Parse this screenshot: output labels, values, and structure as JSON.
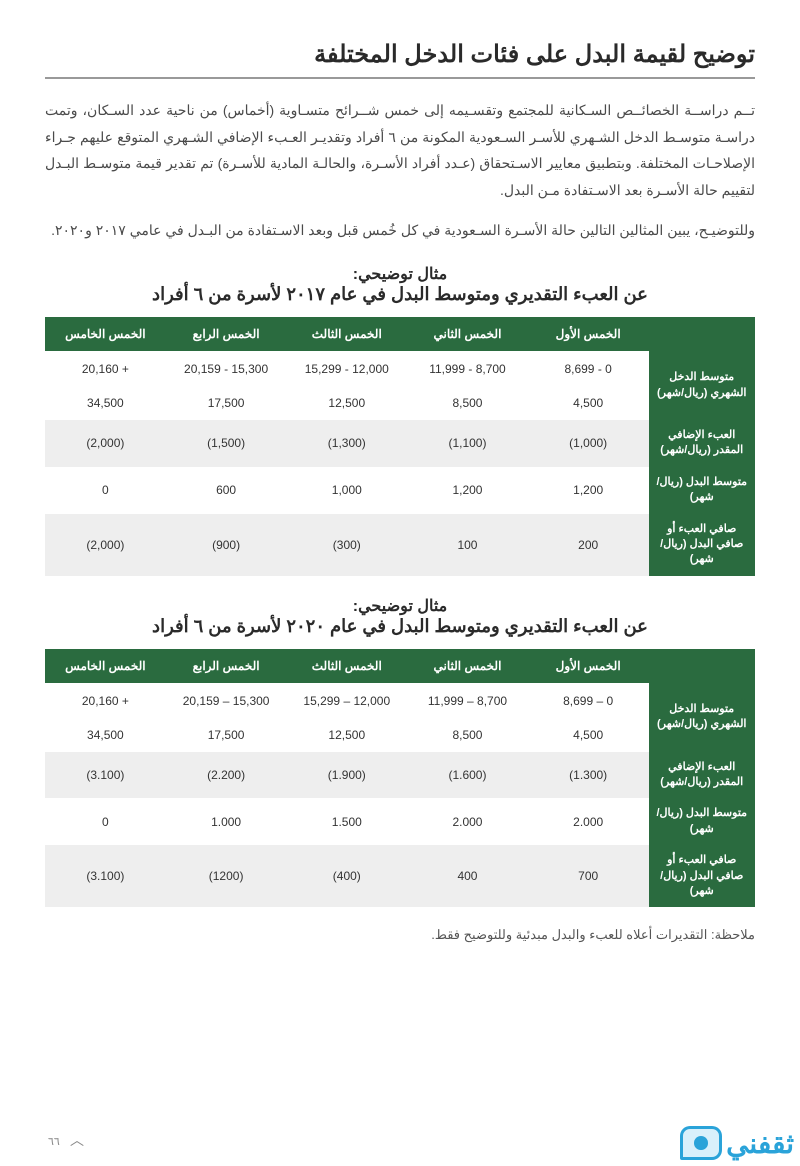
{
  "colors": {
    "header_bg": "#2a6b3f",
    "header_text": "#ffffff",
    "row_alt_bg": "#eeeeee",
    "text": "#3a3a3a",
    "watermark": "#2aa3d9"
  },
  "title": "توضيح لقيمة البدل على فئات الدخل المختلفة",
  "paragraph1": "تــم دراســة الخصائــص السـكانية للمجتمع وتقسـيمه إلى خمس شــرائح متسـاوية (أخماس) من ناحية عدد السـكان، وتمت دراسـة متوسـط الدخل الشـهري للأسـر السـعودية المكونة من ٦ أفراد وتقديـر العـبء الإضافي الشـهري المتوقع عليهم جـراء الإصلاحـات المختلفة. وبتطبيق معايير الاسـتحقاق (عـدد أفراد الأسـرة، والحالـة المادية للأسـرة) تم تقدير قيمة متوسـط البـدل لتقييم حالة الأسـرة بعد الاسـتفادة مـن البدل.",
  "paragraph2": "وللتوضيـح، يبين المثالين التالين حالة الأسـرة السـعودية في كل خُمس قبل وبعد الاسـتفادة من البـدل في عامي ٢٠١٧ و٢٠٢٠.",
  "example1": {
    "label": "مثال توضيحي:",
    "title": "عن العبء التقديري ومتوسط البدل في عام ٢٠١٧ لأسرة من ٦ أفراد",
    "columns": [
      "الخمس الأول",
      "الخمس الثاني",
      "الخمس الثالث",
      "الخمس الرابع",
      "الخمس الخامس"
    ],
    "rows": [
      {
        "head": "متوسط الدخل الشهري (ريال/شهر)",
        "cells": [
          "0 - 8,699",
          "8,700 - 11,999",
          "12,000 - 15,299",
          "15,300 - 20,159",
          "+ 20,160"
        ]
      },
      {
        "head": "",
        "cells": [
          "4,500",
          "8,500",
          "12,500",
          "17,500",
          "34,500"
        ]
      },
      {
        "head": "العبء الإضافي المقدر (ريال/شهر)",
        "cells": [
          "(1,000)",
          "(1,100)",
          "(1,300)",
          "(1,500)",
          "(2,000)"
        ]
      },
      {
        "head": "متوسط البدل (ريال/شهر)",
        "cells": [
          "1,200",
          "1,200",
          "1,000",
          "600",
          "0"
        ]
      },
      {
        "head": "صافي العبء أو صافي البدل (ريال/شهر)",
        "cells": [
          "200",
          "100",
          "(300)",
          "(900)",
          "(2,000)"
        ]
      }
    ]
  },
  "example2": {
    "label": "مثال توضيحي:",
    "title": "عن العبء التقديري ومتوسط البدل في عام ٢٠٢٠ لأسرة من ٦ أفراد",
    "columns": [
      "الخمس الأول",
      "الخمس الثاني",
      "الخمس الثالث",
      "الخمس الرابع",
      "الخمس الخامس"
    ],
    "rows": [
      {
        "head": "متوسط الدخل الشهري (ريال/شهر)",
        "cells": [
          "0 – 8,699",
          "8,700 – 11,999",
          "12,000 – 15,299",
          "15,300 – 20,159",
          "+ 20,160"
        ]
      },
      {
        "head": "",
        "cells": [
          "4,500",
          "8,500",
          "12,500",
          "17,500",
          "34,500"
        ]
      },
      {
        "head": "العبء الإضافي المقدر (ريال/شهر)",
        "cells": [
          "(1.300)",
          "(1.600)",
          "(1.900)",
          "(2.200)",
          "(3.100)"
        ]
      },
      {
        "head": "متوسط البدل (ريال/شهر)",
        "cells": [
          "2.000",
          "2.000",
          "1.500",
          "1.000",
          "0"
        ]
      },
      {
        "head": "صافي العبء أو صافي البدل (ريال/شهر)",
        "cells": [
          "700",
          "400",
          "(400)",
          "(1200)",
          "(3.100)"
        ]
      }
    ]
  },
  "note": "ملاحظة: التقديرات أعلاه للعبء والبدل مبدئية وللتوضيح فقط.",
  "page_number": "٦٦",
  "watermark_text": "ثقفني"
}
